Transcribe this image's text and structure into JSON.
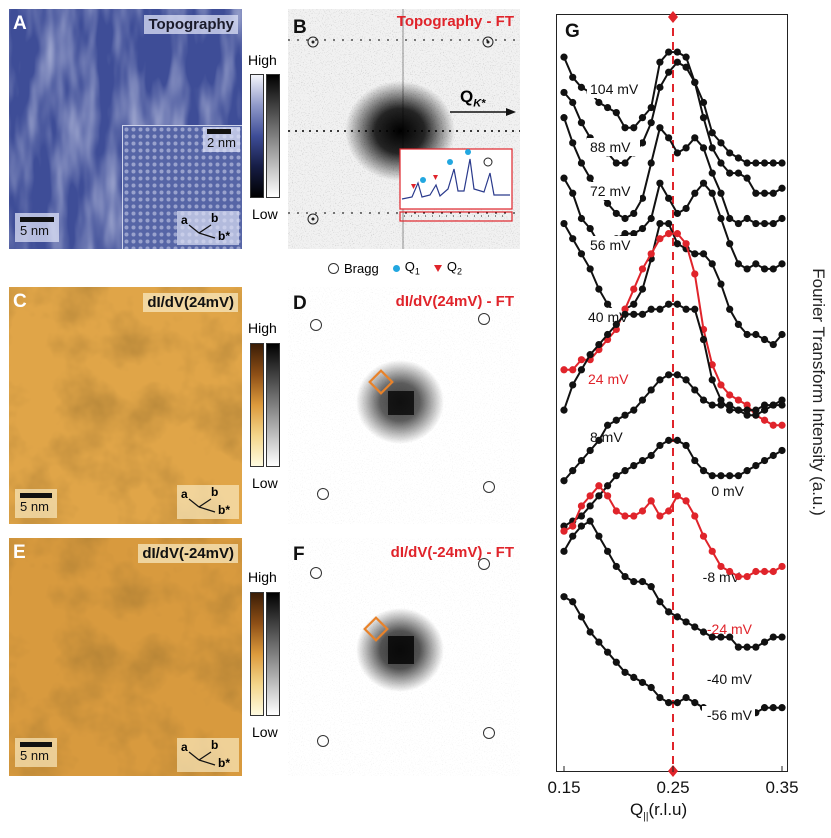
{
  "panels": {
    "A": {
      "letter": "A",
      "title": "Topography",
      "scale": "5 nm",
      "inset_scale": "2 nm",
      "axis_a": "a",
      "axis_b": "b",
      "axis_bstar": "b*"
    },
    "B": {
      "letter": "B",
      "title": "Topography - FT",
      "qk": "Q",
      "qk_sub": "K*"
    },
    "C": {
      "letter": "C",
      "title": "dI/dV(24mV)",
      "scale": "5 nm",
      "axis_a": "a",
      "axis_b": "b",
      "axis_bstar": "b*"
    },
    "D": {
      "letter": "D",
      "title": "dI/dV(24mV) - FT"
    },
    "E": {
      "letter": "E",
      "title": "dI/dV(-24mV)",
      "scale": "5 nm",
      "axis_a": "a",
      "axis_b": "b",
      "axis_bstar": "b*"
    },
    "F": {
      "letter": "F",
      "title": "dI/dV(-24mV) - FT"
    },
    "G": {
      "letter": "G"
    }
  },
  "colorbars": {
    "high": "High",
    "low": "Low"
  },
  "legend": {
    "bragg": "Bragg",
    "q1": "Q",
    "q1_sub": "1",
    "q2": "Q",
    "q2_sub": "2"
  },
  "colors": {
    "topo": "#3e4d97",
    "didv": "#d8962f",
    "red": "#e0242b",
    "blue": "#22a7e0",
    "orange": "#e8822a"
  },
  "chart_data": {
    "type": "line",
    "xlabel": "Q",
    "xlabel_sub": "||",
    "xlabel_unit": "(r.l.u)",
    "ylabel": "Fourier Transform Intensity (a.u.)",
    "xlim": [
      0.15,
      0.35
    ],
    "xticks": [
      "0.15",
      "0.25",
      "0.35"
    ],
    "marker_x": 0.25,
    "x": [
      0.15,
      0.158,
      0.166,
      0.174,
      0.182,
      0.19,
      0.198,
      0.206,
      0.214,
      0.222,
      0.23,
      0.238,
      0.246,
      0.254,
      0.262,
      0.27,
      0.278,
      0.286,
      0.294,
      0.302,
      0.31,
      0.318,
      0.326,
      0.334,
      0.342,
      0.35
    ],
    "series": [
      {
        "name": "104 mV",
        "highlight": false,
        "values": [
          0.97,
          0.93,
          0.91,
          0.9,
          0.88,
          0.87,
          0.86,
          0.83,
          0.83,
          0.85,
          0.87,
          0.96,
          0.98,
          0.98,
          0.97,
          0.92,
          0.85,
          0.79,
          0.76,
          0.74,
          0.74,
          0.73,
          0.7,
          0.7,
          0.7,
          0.71
        ]
      },
      {
        "name": "88 mV",
        "highlight": false,
        "values": [
          0.9,
          0.88,
          0.84,
          0.81,
          0.8,
          0.78,
          0.76,
          0.76,
          0.78,
          0.8,
          0.84,
          0.91,
          0.94,
          0.96,
          0.95,
          0.92,
          0.88,
          0.82,
          0.8,
          0.78,
          0.77,
          0.76,
          0.76,
          0.76,
          0.76,
          0.76
        ]
      },
      {
        "name": "72 mV",
        "highlight": false,
        "values": [
          0.85,
          0.8,
          0.76,
          0.73,
          0.7,
          0.68,
          0.66,
          0.65,
          0.66,
          0.69,
          0.76,
          0.83,
          0.81,
          0.78,
          0.79,
          0.81,
          0.79,
          0.74,
          0.7,
          0.65,
          0.64,
          0.65,
          0.64,
          0.64,
          0.64,
          0.65
        ]
      },
      {
        "name": "56 mV",
        "highlight": false,
        "values": [
          0.73,
          0.7,
          0.65,
          0.63,
          0.6,
          0.6,
          0.61,
          0.62,
          0.62,
          0.63,
          0.65,
          0.72,
          0.69,
          0.66,
          0.67,
          0.7,
          0.72,
          0.7,
          0.65,
          0.6,
          0.56,
          0.55,
          0.56,
          0.55,
          0.55,
          0.56
        ]
      },
      {
        "name": "40 mV",
        "highlight": false,
        "values": [
          0.64,
          0.61,
          0.58,
          0.55,
          0.51,
          0.48,
          0.46,
          0.47,
          0.48,
          0.51,
          0.57,
          0.64,
          0.64,
          0.6,
          0.59,
          0.58,
          0.58,
          0.56,
          0.52,
          0.47,
          0.44,
          0.42,
          0.42,
          0.41,
          0.4,
          0.42
        ]
      },
      {
        "name": "24 mV",
        "highlight": true,
        "values": [
          0.35,
          0.35,
          0.37,
          0.37,
          0.39,
          0.41,
          0.43,
          0.47,
          0.51,
          0.55,
          0.58,
          0.61,
          0.62,
          0.62,
          0.6,
          0.54,
          0.43,
          0.36,
          0.32,
          0.3,
          0.29,
          0.28,
          0.26,
          0.25,
          0.24,
          0.24
        ]
      },
      {
        "name": "8 mV",
        "highlight": false,
        "values": [
          0.27,
          0.32,
          0.35,
          0.38,
          0.4,
          0.42,
          0.44,
          0.46,
          0.46,
          0.46,
          0.47,
          0.47,
          0.48,
          0.48,
          0.47,
          0.47,
          0.41,
          0.33,
          0.29,
          0.27,
          0.27,
          0.26,
          0.26,
          0.27,
          0.28,
          0.29
        ]
      },
      {
        "name": "0 mV",
        "highlight": false,
        "values": [
          0.13,
          0.15,
          0.17,
          0.19,
          0.21,
          0.24,
          0.25,
          0.26,
          0.27,
          0.29,
          0.31,
          0.33,
          0.34,
          0.34,
          0.33,
          0.31,
          0.29,
          0.28,
          0.28,
          0.28,
          0.27,
          0.27,
          0.27,
          0.28,
          0.28,
          0.28
        ]
      },
      {
        "name": "-8 mV",
        "highlight": false,
        "values": [
          0.04,
          0.05,
          0.06,
          0.08,
          0.1,
          0.12,
          0.14,
          0.15,
          0.16,
          0.17,
          0.18,
          0.2,
          0.21,
          0.21,
          0.2,
          0.17,
          0.15,
          0.14,
          0.14,
          0.14,
          0.14,
          0.15,
          0.16,
          0.17,
          0.18,
          0.19
        ]
      },
      {
        "name": "-24 mV",
        "highlight": true,
        "values": [
          0.03,
          0.04,
          0.08,
          0.1,
          0.12,
          0.1,
          0.07,
          0.06,
          0.06,
          0.07,
          0.09,
          0.06,
          0.07,
          0.1,
          0.09,
          0.06,
          0.02,
          -0.01,
          -0.04,
          -0.05,
          -0.06,
          -0.06,
          -0.05,
          -0.05,
          -0.05,
          -0.04
        ]
      },
      {
        "name": "-40 mV",
        "highlight": false,
        "values": [
          -0.01,
          0.02,
          0.04,
          0.05,
          0.02,
          -0.01,
          -0.04,
          -0.06,
          -0.07,
          -0.07,
          -0.08,
          -0.11,
          -0.13,
          -0.14,
          -0.15,
          -0.16,
          -0.17,
          -0.18,
          -0.18,
          -0.18,
          -0.2,
          -0.2,
          -0.2,
          -0.19,
          -0.18,
          -0.18
        ]
      },
      {
        "name": "-56 mV",
        "highlight": false,
        "values": [
          -0.1,
          -0.11,
          -0.14,
          -0.17,
          -0.19,
          -0.21,
          -0.23,
          -0.25,
          -0.26,
          -0.27,
          -0.28,
          -0.3,
          -0.31,
          -0.31,
          -0.3,
          -0.31,
          -0.32,
          -0.34,
          -0.34,
          -0.33,
          -0.33,
          -0.33,
          -0.33,
          -0.32,
          -0.32,
          -0.32
        ]
      }
    ]
  }
}
